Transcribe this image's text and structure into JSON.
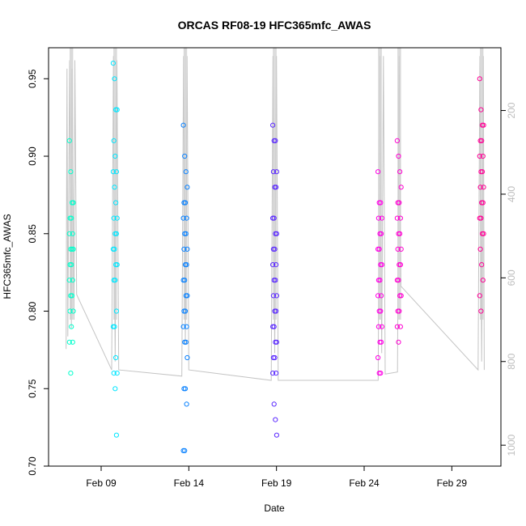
{
  "chart_data": {
    "type": "scatter",
    "title": "ORCAS RF08-19 HFC365mfc_AWAS",
    "xlabel": "Date",
    "ylabel": "HFC365mfc_AWAS",
    "x_ticks": [
      "Feb 09",
      "Feb 14",
      "Feb 19",
      "Feb 24",
      "Feb 29"
    ],
    "x_tick_days": [
      9,
      14,
      19,
      24,
      29
    ],
    "xlim_days": [
      6.0,
      31.8
    ],
    "ylim": [
      0.7,
      0.97
    ],
    "y_ticks": [
      0.7,
      0.75,
      0.8,
      0.85,
      0.9,
      0.95
    ],
    "y_tick_labels": [
      "0.70",
      "0.75",
      "0.80",
      "0.85",
      "0.90",
      "0.95"
    ],
    "right_axis": {
      "ylim": [
        1050,
        50
      ],
      "ticks": [
        200,
        400,
        600,
        800,
        1000
      ],
      "tick_labels": [
        "200",
        "400",
        "600",
        "800",
        "1000"
      ],
      "color": "#bdbdbd"
    },
    "grid": false,
    "flights": [
      {
        "day": 7.3,
        "color": "#00ffcc",
        "values": [
          0.91,
          0.89,
          0.87,
          0.87,
          0.86,
          0.86,
          0.85,
          0.85,
          0.84,
          0.84,
          0.84,
          0.83,
          0.83,
          0.82,
          0.82,
          0.81,
          0.81,
          0.8,
          0.8,
          0.79,
          0.78,
          0.78,
          0.76
        ]
      },
      {
        "day": 9.8,
        "color": "#00e6ff",
        "values": [
          0.96,
          0.95,
          0.93,
          0.93,
          0.91,
          0.9,
          0.89,
          0.89,
          0.88,
          0.87,
          0.86,
          0.86,
          0.85,
          0.85,
          0.84,
          0.84,
          0.83,
          0.83,
          0.82,
          0.82,
          0.8,
          0.79,
          0.79,
          0.77,
          0.76,
          0.76,
          0.75,
          0.72
        ]
      },
      {
        "day": 13.8,
        "color": "#0a82ff",
        "values": [
          0.92,
          0.9,
          0.89,
          0.88,
          0.87,
          0.87,
          0.86,
          0.86,
          0.85,
          0.85,
          0.84,
          0.84,
          0.83,
          0.83,
          0.82,
          0.82,
          0.81,
          0.81,
          0.8,
          0.8,
          0.79,
          0.79,
          0.78,
          0.78,
          0.77,
          0.75,
          0.75,
          0.74,
          0.71,
          0.71
        ]
      },
      {
        "day": 18.9,
        "color": "#5a28ff",
        "values": [
          0.92,
          0.91,
          0.91,
          0.89,
          0.89,
          0.88,
          0.88,
          0.86,
          0.86,
          0.85,
          0.85,
          0.84,
          0.84,
          0.83,
          0.83,
          0.82,
          0.82,
          0.81,
          0.81,
          0.8,
          0.8,
          0.79,
          0.79,
          0.78,
          0.78,
          0.77,
          0.77,
          0.76,
          0.76,
          0.74,
          0.73,
          0.72
        ]
      },
      {
        "day": 24.9,
        "color": "#ff00e6",
        "values": [
          0.89,
          0.87,
          0.87,
          0.86,
          0.86,
          0.85,
          0.85,
          0.84,
          0.84,
          0.83,
          0.83,
          0.82,
          0.82,
          0.81,
          0.81,
          0.8,
          0.8,
          0.79,
          0.79,
          0.78,
          0.78,
          0.77,
          0.76,
          0.76
        ]
      },
      {
        "day": 26.0,
        "color": "#ff00d2",
        "values": [
          0.91,
          0.9,
          0.89,
          0.88,
          0.87,
          0.87,
          0.86,
          0.86,
          0.85,
          0.85,
          0.84,
          0.84,
          0.83,
          0.83,
          0.82,
          0.82,
          0.81,
          0.81,
          0.8,
          0.8,
          0.79,
          0.79,
          0.78
        ]
      },
      {
        "day": 30.7,
        "color": "#ff0096",
        "values": [
          0.95,
          0.93,
          0.92,
          0.92,
          0.91,
          0.91,
          0.9,
          0.9,
          0.89,
          0.89,
          0.88,
          0.88,
          0.87,
          0.87,
          0.86,
          0.86,
          0.85,
          0.85,
          0.84,
          0.83,
          0.82,
          0.81,
          0.8
        ]
      }
    ],
    "altitude_trace": [
      [
        7.0,
        770
      ],
      [
        7.05,
        100
      ],
      [
        7.1,
        740
      ],
      [
        7.2,
        80
      ],
      [
        7.3,
        720
      ],
      [
        7.35,
        100
      ],
      [
        7.45,
        700
      ],
      [
        7.5,
        80
      ],
      [
        7.6,
        640
      ],
      [
        9.6,
        820
      ],
      [
        9.7,
        70
      ],
      [
        9.8,
        800
      ],
      [
        9.9,
        80
      ],
      [
        10.0,
        820
      ],
      [
        13.6,
        835
      ],
      [
        13.7,
        70
      ],
      [
        13.8,
        760
      ],
      [
        13.9,
        70
      ],
      [
        14.0,
        820
      ],
      [
        18.7,
        845
      ],
      [
        18.8,
        70
      ],
      [
        18.9,
        780
      ],
      [
        19.0,
        70
      ],
      [
        19.1,
        845
      ],
      [
        24.8,
        845
      ],
      [
        24.9,
        70
      ],
      [
        25.0,
        780
      ],
      [
        25.1,
        70
      ],
      [
        25.2,
        830
      ],
      [
        25.9,
        825
      ],
      [
        26.0,
        70
      ],
      [
        26.1,
        620
      ],
      [
        30.5,
        820
      ],
      [
        30.6,
        70
      ],
      [
        30.7,
        800
      ],
      [
        30.8,
        70
      ],
      [
        30.85,
        820
      ]
    ]
  }
}
